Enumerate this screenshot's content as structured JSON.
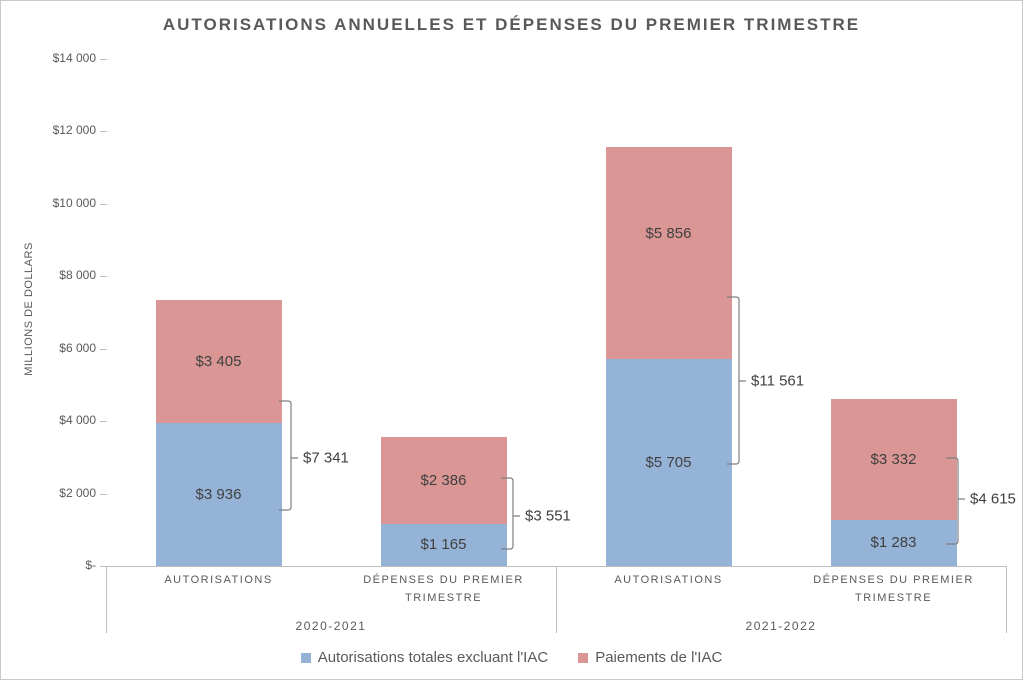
{
  "title": "AUTORISATIONS ANNUELLES ET DÉPENSES DU PREMIER TRIMESTRE",
  "y_axis": {
    "label": "MILLIONS DE DOLLARS",
    "ticks": [
      "$14 000",
      "$12 000",
      "$10 000",
      "$8 000",
      "$6 000",
      "$4 000",
      "$2 000",
      "$-"
    ]
  },
  "chart_data": {
    "type": "bar",
    "stacked": true,
    "title": "AUTORISATIONS ANNUELLES ET DÉPENSES DU PREMIER TRIMESTRE",
    "ylabel": "MILLIONS DE DOLLARS",
    "ylim": [
      0,
      14000
    ],
    "grid": false,
    "legend_position": "bottom",
    "groups": [
      "2020-2021",
      "2021-2022"
    ],
    "categories": [
      "AUTORISATIONS",
      "DÉPENSES DU PREMIER TRIMESTRE",
      "AUTORISATIONS",
      "DÉPENSES DU PREMIER TRIMESTRE"
    ],
    "series": [
      {
        "name": "Autorisations totales excluant l'IAC",
        "color": "#95B3D7",
        "values": [
          3936,
          1165,
          5705,
          1283
        ],
        "labels": [
          "$3 936",
          "$1 165",
          "$5 705",
          "$1 283"
        ]
      },
      {
        "name": "Paiements de l'IAC",
        "color": "#D99694",
        "values": [
          3405,
          2386,
          5856,
          3332
        ],
        "labels": [
          "$3 405",
          "$2 386",
          "$5 856",
          "$3 332"
        ]
      }
    ],
    "totals": [
      7341,
      3551,
      11561,
      4615
    ],
    "total_labels": [
      "$7 341",
      "$3 551",
      "$11 561",
      "$4 615"
    ]
  },
  "colors": {
    "axis": "#BFBFBF",
    "bracket": "#7F7F7F",
    "text_dark": "#404040",
    "text_gray": "#595959"
  }
}
